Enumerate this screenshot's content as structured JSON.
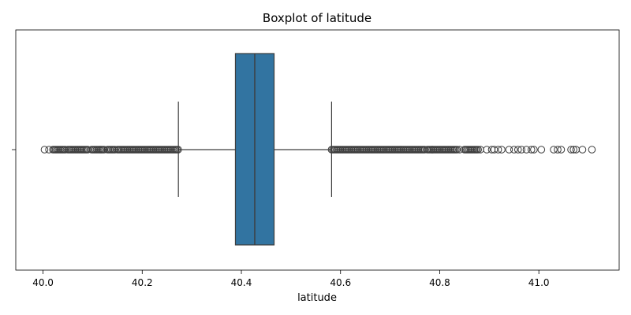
{
  "chart_data": {
    "type": "boxplot",
    "title": "Boxplot of latitude",
    "xlabel": "latitude",
    "ylabel": "",
    "xlim": [
      39.945,
      41.162
    ],
    "xticks": [
      40.0,
      40.2,
      40.4,
      40.6,
      40.8,
      41.0
    ],
    "xtick_labels": [
      "40.0",
      "40.2",
      "40.4",
      "40.6",
      "40.8",
      "41.0"
    ],
    "grid": false,
    "legend": "none",
    "box": {
      "whisker_low": 40.273,
      "q1": 40.388,
      "median": 40.427,
      "q3": 40.466,
      "whisker_high": 40.582
    },
    "outlier_ranges": [
      {
        "from": 40.02,
        "to": 40.045
      },
      {
        "from": 40.05,
        "to": 40.09
      },
      {
        "from": 40.098,
        "to": 40.125
      },
      {
        "from": 40.13,
        "to": 40.145
      },
      {
        "from": 40.15,
        "to": 40.273
      },
      {
        "from": 40.582,
        "to": 40.77
      },
      {
        "from": 40.775,
        "to": 40.835
      },
      {
        "from": 40.85,
        "to": 40.878
      }
    ],
    "outliers": [
      40.003,
      40.012,
      40.785,
      40.84,
      40.882,
      40.895,
      40.905,
      40.91,
      40.918,
      40.925,
      40.94,
      40.95,
      40.958,
      40.965,
      40.975,
      40.985,
      40.99,
      41.005,
      41.03,
      41.038,
      41.045,
      41.065,
      41.07,
      41.075,
      41.088,
      41.107
    ],
    "colors": {
      "box_fill": "#3274a1",
      "line": "#3d3d3d",
      "outlier_edge": "#3d3d3d",
      "axes": "#000000"
    }
  }
}
